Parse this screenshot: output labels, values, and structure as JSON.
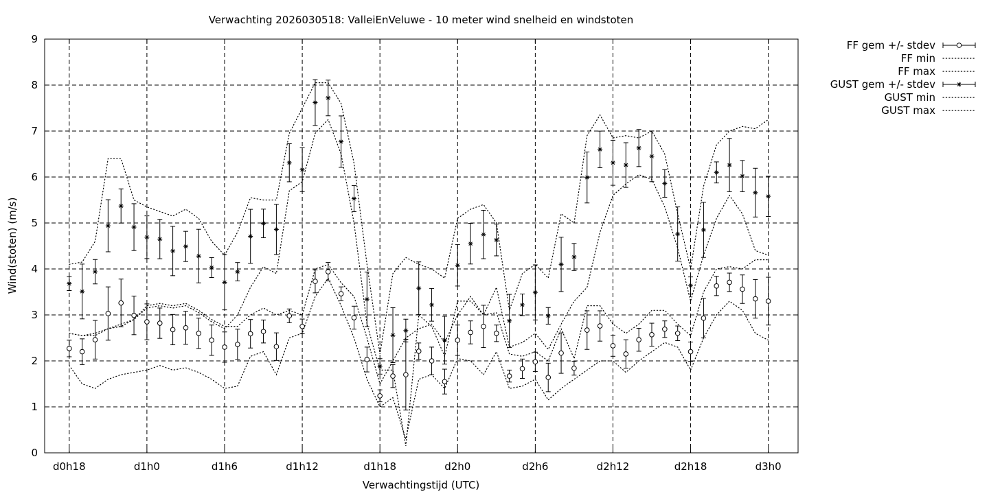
{
  "chart_data": {
    "type": "line",
    "title": "Verwachting 2026030518: ValleiEnVeluwe - 10 meter wind snelheid en windstoten",
    "xlabel": "Verwachtingstijd (UTC)",
    "ylabel": "Wind(stoten) (m/s)",
    "ylim": [
      0,
      9
    ],
    "xlim": [
      -1.9,
      56.3
    ],
    "x_ticks": [
      {
        "x": 0,
        "label": "d0h18"
      },
      {
        "x": 6,
        "label": "d1h0"
      },
      {
        "x": 12,
        "label": "d1h6"
      },
      {
        "x": 18,
        "label": "d1h12"
      },
      {
        "x": 24,
        "label": "d1h18"
      },
      {
        "x": 30,
        "label": "d2h0"
      },
      {
        "x": 36,
        "label": "d2h6"
      },
      {
        "x": 42,
        "label": "d2h12"
      },
      {
        "x": 48,
        "label": "d2h18"
      },
      {
        "x": 54,
        "label": "d3h0"
      }
    ],
    "y_ticks": [
      "0",
      "1",
      "2",
      "3",
      "4",
      "5",
      "6",
      "7",
      "8",
      "9"
    ],
    "grid": true,
    "legend_position": "outside-top-right",
    "series": [
      {
        "name": "FF gem +/- stdev",
        "style": "errorbar-circle",
        "mean": [
          2.27,
          2.2,
          2.46,
          3.03,
          3.26,
          2.99,
          2.85,
          2.82,
          2.68,
          2.72,
          2.6,
          2.45,
          2.3,
          2.36,
          2.59,
          2.64,
          2.31,
          2.98,
          2.75,
          3.73,
          3.94,
          3.46,
          2.94,
          2.03,
          1.24,
          1.67,
          1.7,
          2.21,
          2.0,
          1.55,
          2.45,
          2.62,
          2.75,
          2.6,
          1.67,
          1.83,
          1.98,
          1.64,
          2.17,
          1.84,
          2.67,
          2.76,
          2.33,
          2.15,
          2.46,
          2.57,
          2.69,
          2.6,
          2.2,
          2.93,
          3.63,
          3.71,
          3.56,
          3.35,
          3.3
        ],
        "stdev": [
          0.18,
          0.28,
          0.42,
          0.58,
          0.52,
          0.42,
          0.39,
          0.33,
          0.33,
          0.36,
          0.33,
          0.33,
          0.33,
          0.33,
          0.31,
          0.25,
          0.3,
          0.15,
          0.16,
          0.25,
          0.2,
          0.15,
          0.25,
          0.27,
          0.13,
          0.25,
          0.77,
          0.18,
          0.3,
          0.27,
          0.33,
          0.25,
          0.46,
          0.18,
          0.13,
          0.21,
          0.21,
          0.31,
          0.44,
          0.15,
          0.42,
          0.33,
          0.23,
          0.31,
          0.25,
          0.25,
          0.18,
          0.16,
          0.21,
          0.43,
          0.21,
          0.2,
          0.31,
          0.42,
          0.52
        ]
      },
      {
        "name": "FF min",
        "style": "dotted",
        "values": [
          1.9,
          1.5,
          1.4,
          1.6,
          1.7,
          1.75,
          1.8,
          1.9,
          1.8,
          1.85,
          1.75,
          1.6,
          1.4,
          1.45,
          2.1,
          2.2,
          1.7,
          2.5,
          2.6,
          3.4,
          3.8,
          3.2,
          2.5,
          1.6,
          1.0,
          1.2,
          0.3,
          1.6,
          1.7,
          1.4,
          2.05,
          2.0,
          1.7,
          2.2,
          1.4,
          1.45,
          1.6,
          1.15,
          1.4,
          1.6,
          1.8,
          2.0,
          2.0,
          1.75,
          2.0,
          2.2,
          2.4,
          2.3,
          1.8,
          2.5,
          3.0,
          3.3,
          3.1,
          2.6,
          2.45
        ]
      },
      {
        "name": "FF max",
        "style": "dotted",
        "values": [
          2.6,
          2.55,
          2.55,
          2.7,
          2.8,
          2.9,
          3.2,
          3.25,
          3.2,
          3.25,
          3.1,
          2.9,
          2.75,
          2.75,
          3.0,
          3.15,
          3.0,
          3.1,
          3.0,
          4.0,
          4.1,
          3.7,
          3.4,
          2.5,
          1.5,
          2.0,
          2.5,
          2.7,
          2.8,
          2.4,
          3.0,
          3.4,
          3.0,
          3.05,
          2.15,
          2.1,
          2.2,
          2.0,
          2.7,
          2.05,
          3.2,
          3.2,
          2.8,
          2.6,
          2.8,
          3.1,
          3.1,
          2.8,
          2.55,
          3.5,
          4.0,
          4.05,
          4.0,
          4.2,
          4.2
        ]
      },
      {
        "name": "GUST gem +/- stdev",
        "style": "errorbar-star",
        "mean": [
          3.68,
          3.51,
          3.94,
          4.94,
          5.37,
          4.91,
          4.69,
          4.65,
          4.39,
          4.49,
          4.28,
          4.03,
          3.71,
          3.94,
          4.71,
          4.99,
          4.86,
          6.31,
          6.16,
          7.62,
          7.72,
          6.77,
          5.53,
          3.34,
          1.88,
          2.56,
          2.66,
          3.58,
          3.22,
          2.45,
          4.08,
          4.55,
          4.75,
          4.63,
          2.87,
          3.22,
          3.49,
          2.98,
          4.1,
          4.26,
          5.99,
          6.6,
          6.31,
          6.26,
          6.63,
          6.45,
          5.86,
          4.76,
          3.64,
          4.85,
          6.1,
          6.26,
          6.02,
          5.66,
          5.58
        ]
      },
      {
        "name": "GUST min",
        "style": "dotted",
        "values": [
          2.6,
          2.55,
          2.6,
          2.7,
          2.75,
          2.9,
          3.15,
          3.2,
          3.15,
          3.2,
          3.05,
          2.85,
          2.7,
          3.0,
          3.6,
          4.05,
          3.9,
          5.7,
          5.9,
          6.95,
          7.25,
          6.5,
          5.0,
          2.8,
          1.8,
          1.8,
          0.15,
          3.0,
          2.75,
          2.1,
          3.3,
          3.3,
          3.0,
          3.6,
          2.3,
          2.4,
          2.6,
          2.25,
          2.8,
          3.3,
          3.6,
          4.8,
          5.6,
          5.85,
          6.05,
          5.95,
          5.35,
          4.45,
          3.3,
          4.3,
          5.1,
          5.6,
          5.2,
          4.4,
          4.3
        ]
      },
      {
        "name": "GUST max",
        "style": "dotted",
        "values": [
          4.1,
          4.15,
          4.6,
          6.4,
          6.4,
          5.5,
          5.35,
          5.25,
          5.15,
          5.3,
          5.1,
          4.6,
          4.3,
          4.8,
          5.55,
          5.5,
          5.5,
          6.95,
          7.5,
          8.05,
          8.05,
          7.6,
          6.3,
          4.1,
          2.15,
          3.9,
          4.25,
          4.1,
          4.0,
          3.8,
          5.1,
          5.3,
          5.4,
          5.0,
          3.1,
          3.9,
          4.1,
          3.8,
          5.2,
          5.0,
          6.9,
          7.35,
          6.85,
          6.9,
          6.85,
          7.0,
          6.5,
          5.2,
          4.0,
          5.8,
          6.7,
          7.0,
          7.1,
          7.05,
          7.25
        ]
      }
    ]
  }
}
